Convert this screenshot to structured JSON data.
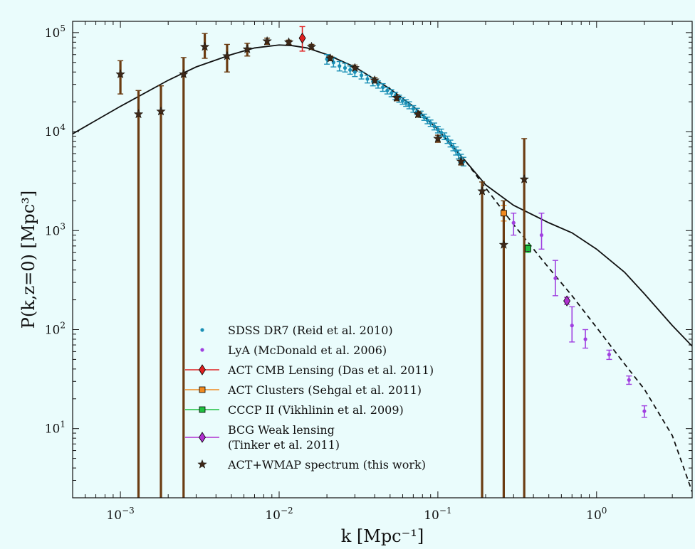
{
  "chart_data": {
    "type": "scatter",
    "title": "",
    "xlabel": "k [Mpc⁻¹]",
    "ylabel": "P(k,z=0) [Mpc³]",
    "xscale": "log",
    "yscale": "log",
    "xlim": [
      0.0005,
      4.0
    ],
    "ylim": [
      2.0,
      130000
    ],
    "grid": false,
    "legend_position": "lower-left",
    "x_ticks": [
      {
        "value": 0.001,
        "base": "10",
        "exp": "−3"
      },
      {
        "value": 0.01,
        "base": "10",
        "exp": "−2"
      },
      {
        "value": 0.1,
        "base": "10",
        "exp": "−1"
      },
      {
        "value": 1,
        "base": "10",
        "exp": "0"
      }
    ],
    "y_ticks": [
      {
        "value": 10,
        "base": "10",
        "exp": "1"
      },
      {
        "value": 100,
        "base": "10",
        "exp": "2"
      },
      {
        "value": 1000,
        "base": "10",
        "exp": "3"
      },
      {
        "value": 10000,
        "base": "10",
        "exp": "4"
      },
      {
        "value": 100000,
        "base": "10",
        "exp": "5"
      }
    ],
    "curves": [
      {
        "style": "solid",
        "color": "#111111",
        "points": [
          [
            0.0005,
            9500
          ],
          [
            0.001,
            18000
          ],
          [
            0.002,
            33000
          ],
          [
            0.003,
            45000
          ],
          [
            0.005,
            60000
          ],
          [
            0.007,
            70000
          ],
          [
            0.01,
            75000
          ],
          [
            0.012,
            74000
          ],
          [
            0.015,
            70000
          ],
          [
            0.02,
            60000
          ],
          [
            0.03,
            45000
          ],
          [
            0.05,
            27000
          ],
          [
            0.07,
            18000
          ],
          [
            0.1,
            10500
          ],
          [
            0.15,
            5000
          ],
          [
            0.2,
            2900
          ],
          [
            0.3,
            1800
          ],
          [
            0.5,
            1200
          ],
          [
            0.7,
            950
          ],
          [
            1.0,
            650
          ],
          [
            1.5,
            380
          ],
          [
            2.0,
            230
          ],
          [
            3.0,
            110
          ],
          [
            4.0,
            68
          ]
        ]
      },
      {
        "style": "dashed",
        "color": "#111111",
        "points": [
          [
            0.15,
            5000
          ],
          [
            0.2,
            2700
          ],
          [
            0.3,
            1150
          ],
          [
            0.5,
            420
          ],
          [
            0.7,
            220
          ],
          [
            1.0,
            105
          ],
          [
            1.5,
            45
          ],
          [
            2.0,
            25
          ],
          [
            3.0,
            8.5
          ],
          [
            4.0,
            2.3
          ]
        ]
      }
    ],
    "series": [
      {
        "name": "SDSS DR7 (Reid et al. 2010)",
        "marker": "dot",
        "color": "#1a8fb5",
        "points": [
          [
            0.02,
            54000,
            48000,
            60000
          ],
          [
            0.022,
            50000,
            45000,
            56000
          ],
          [
            0.024,
            46000,
            41000,
            51000
          ],
          [
            0.026,
            44000,
            40000,
            49000
          ],
          [
            0.028,
            42000,
            38000,
            46000
          ],
          [
            0.03,
            40000,
            36000,
            44000
          ],
          [
            0.033,
            37000,
            34000,
            40000
          ],
          [
            0.036,
            34000,
            31000,
            37000
          ],
          [
            0.039,
            32000,
            29000,
            35000
          ],
          [
            0.042,
            30000,
            27500,
            32500
          ],
          [
            0.045,
            28000,
            25500,
            30500
          ],
          [
            0.048,
            26000,
            24000,
            28000
          ],
          [
            0.051,
            24500,
            22500,
            26500
          ],
          [
            0.054,
            23000,
            21000,
            25000
          ],
          [
            0.057,
            21500,
            19800,
            23300
          ],
          [
            0.06,
            20500,
            18900,
            22100
          ],
          [
            0.063,
            19500,
            18000,
            21000
          ],
          [
            0.066,
            18500,
            17000,
            20000
          ],
          [
            0.07,
            17000,
            15700,
            18300
          ],
          [
            0.074,
            16000,
            14800,
            17200
          ],
          [
            0.078,
            15000,
            13900,
            16100
          ],
          [
            0.082,
            14000,
            13000,
            15000
          ],
          [
            0.086,
            13000,
            12000,
            14000
          ],
          [
            0.09,
            12200,
            11300,
            13100
          ],
          [
            0.095,
            11300,
            10400,
            12200
          ],
          [
            0.1,
            10500,
            9700,
            11300
          ],
          [
            0.105,
            9800,
            9000,
            10600
          ],
          [
            0.11,
            9000,
            8300,
            9700
          ],
          [
            0.115,
            8300,
            7600,
            9000
          ],
          [
            0.12,
            7600,
            7000,
            8200
          ],
          [
            0.125,
            7000,
            6400,
            7600
          ],
          [
            0.13,
            6400,
            5800,
            7000
          ],
          [
            0.135,
            5900,
            5300,
            6500
          ],
          [
            0.14,
            5400,
            4900,
            5900
          ],
          [
            0.145,
            5000,
            4500,
            5500
          ]
        ]
      },
      {
        "name": "LyA (McDonald et al. 2006)",
        "marker": "dot",
        "color": "#a040e0",
        "points": [
          [
            0.3,
            1200,
            900,
            1500
          ],
          [
            0.45,
            900,
            650,
            1500
          ],
          [
            0.55,
            330,
            220,
            500
          ],
          [
            0.7,
            110,
            75,
            170
          ],
          [
            0.85,
            80,
            65,
            100
          ],
          [
            1.2,
            56,
            50,
            62
          ],
          [
            1.6,
            31,
            28,
            34
          ],
          [
            2.0,
            15,
            13,
            17
          ]
        ]
      },
      {
        "name": "ACT CMB Lensing (Das et al. 2011)",
        "marker": "diamond",
        "color": "#e02020",
        "points": [
          [
            0.014,
            88000,
            65000,
            115000
          ]
        ]
      },
      {
        "name": "ACT Clusters (Sehgal et al. 2011)",
        "marker": "square",
        "color": "#f08a20",
        "points": [
          [
            0.26,
            1500,
            1250,
            1800
          ]
        ]
      },
      {
        "name": "CCCP II (Vikhlinin et al. 2009)",
        "marker": "square",
        "color": "#20c040",
        "points": [
          [
            0.37,
            660,
            600,
            720
          ]
        ]
      },
      {
        "name": "BCG Weak lensing",
        "name_line2": "(Tinker et al. 2011)",
        "marker": "diamond",
        "color": "#b030d0",
        "points": [
          [
            0.65,
            195,
            180,
            212
          ]
        ]
      },
      {
        "name": "ACT+WMAP spectrum (this work)",
        "marker": "star",
        "color": "#3d2818",
        "errcolor": "#6b3c12",
        "points": [
          [
            0.001,
            38000,
            24000,
            52000
          ],
          [
            0.0013,
            15000,
            2.0,
            26000
          ],
          [
            0.0018,
            16000,
            2.0,
            29000
          ],
          [
            0.0025,
            38000,
            2.0,
            56000
          ],
          [
            0.0034,
            72000,
            55000,
            98000
          ],
          [
            0.0047,
            58000,
            40000,
            76000
          ],
          [
            0.0063,
            68000,
            58000,
            78000
          ],
          [
            0.0084,
            82000,
            76000,
            88000
          ],
          [
            0.0115,
            80000,
            76000,
            84000
          ],
          [
            0.016,
            72000,
            68000,
            76000
          ],
          [
            0.021,
            55000,
            52000,
            58000
          ],
          [
            0.03,
            44000,
            41000,
            47000
          ],
          [
            0.04,
            33000,
            31000,
            35000
          ],
          [
            0.055,
            22000,
            20500,
            23500
          ],
          [
            0.075,
            15000,
            14000,
            16000
          ],
          [
            0.1,
            8500,
            7800,
            9200
          ],
          [
            0.14,
            5000,
            4600,
            5400
          ],
          [
            0.19,
            2500,
            2.0,
            3100
          ],
          [
            0.26,
            720,
            2.0,
            2000
          ],
          [
            0.35,
            3300,
            2.0,
            8500
          ]
        ]
      }
    ]
  }
}
